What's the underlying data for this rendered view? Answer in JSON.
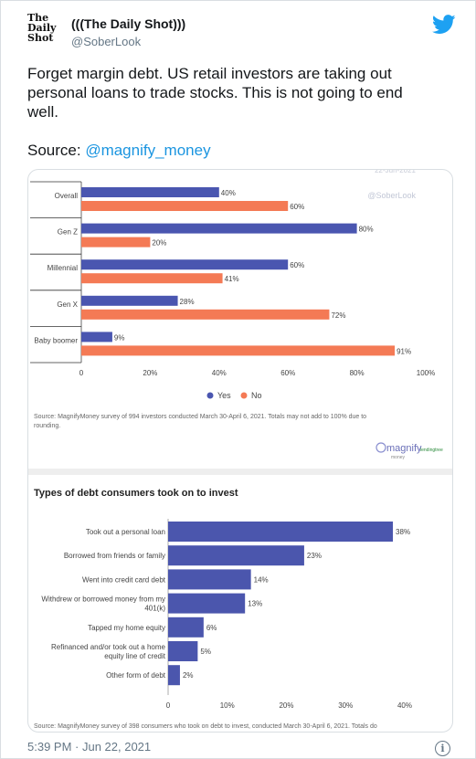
{
  "tweet": {
    "display_name": "(((The Daily Shot)))",
    "handle": "@SoberLook",
    "logo_lines": [
      "The",
      "Daily",
      "Shot"
    ],
    "text_lines": [
      "Forget margin debt. US retail investors are taking out",
      "personal loans to trade stocks. This is not going to end",
      "well."
    ],
    "source_prefix": "Source: ",
    "source_link": "@magnify_money",
    "timestamp": "5:39 PM · Jun 22, 2021",
    "info_glyph": "i"
  },
  "colors": {
    "yes": "#4a56b0",
    "no": "#f47a55",
    "bar2": "#4b56ad",
    "twitter_blue": "#1da1f2",
    "link": "#1b95e0"
  },
  "chart_data": [
    {
      "type": "bar",
      "orientation": "horizontal",
      "categories": [
        "Overall",
        "Gen Z",
        "Millennial",
        "Gen X",
        "Baby boomer"
      ],
      "series": [
        {
          "name": "Yes",
          "values": [
            40,
            80,
            60,
            28,
            9
          ]
        },
        {
          "name": "No",
          "values": [
            60,
            20,
            41,
            72,
            91
          ]
        }
      ],
      "value_labels": {
        "Yes": [
          "40%",
          "80%",
          "60%",
          "28%",
          "9%"
        ],
        "No": [
          "60%",
          "20%",
          "41%",
          "72%",
          "91%"
        ]
      },
      "xlim": [
        0,
        100
      ],
      "x_ticks": [
        0,
        20,
        40,
        60,
        80,
        100
      ],
      "x_tick_labels": [
        "0",
        "20%",
        "40%",
        "60%",
        "80%",
        "100%"
      ],
      "legend_position": "bottom",
      "watermark_date": "22-Jun-2021",
      "watermark_handle": "@SoberLook",
      "source_lines": [
        "Source: MagnifyMoney survey of 994 investors conducted March 30-April 6, 2021. Totals may not add to 100% due to",
        "rounding."
      ]
    },
    {
      "type": "bar",
      "orientation": "horizontal",
      "title": "Types of debt consumers took on to invest",
      "categories": [
        [
          "Took out a personal loan"
        ],
        [
          "Borrowed from friends or family"
        ],
        [
          "Went into credit card debt"
        ],
        [
          "Withdrew or borrowed money from my",
          "401(k)"
        ],
        [
          "Tapped my home equity"
        ],
        [
          "Refinanced and/or took out a home",
          "equity line of credit"
        ],
        [
          "Other form of debt"
        ]
      ],
      "values": [
        38,
        23,
        14,
        13,
        6,
        5,
        2
      ],
      "value_labels": [
        "38%",
        "23%",
        "14%",
        "13%",
        "6%",
        "5%",
        "2%"
      ],
      "xlim": [
        0,
        40
      ],
      "x_ticks": [
        0,
        10,
        20,
        30,
        40
      ],
      "x_tick_labels": [
        "0",
        "10%",
        "20%",
        "30%",
        "40%"
      ],
      "source_line": "Source: MagnifyMoney survey of 398 consumers who took on debt to invest, conducted March 30-April 6, 2021. Totals do"
    }
  ],
  "brand": {
    "magnify_text": "magnify",
    "magnify_sub": "money",
    "lending_text": "lendingtree"
  }
}
